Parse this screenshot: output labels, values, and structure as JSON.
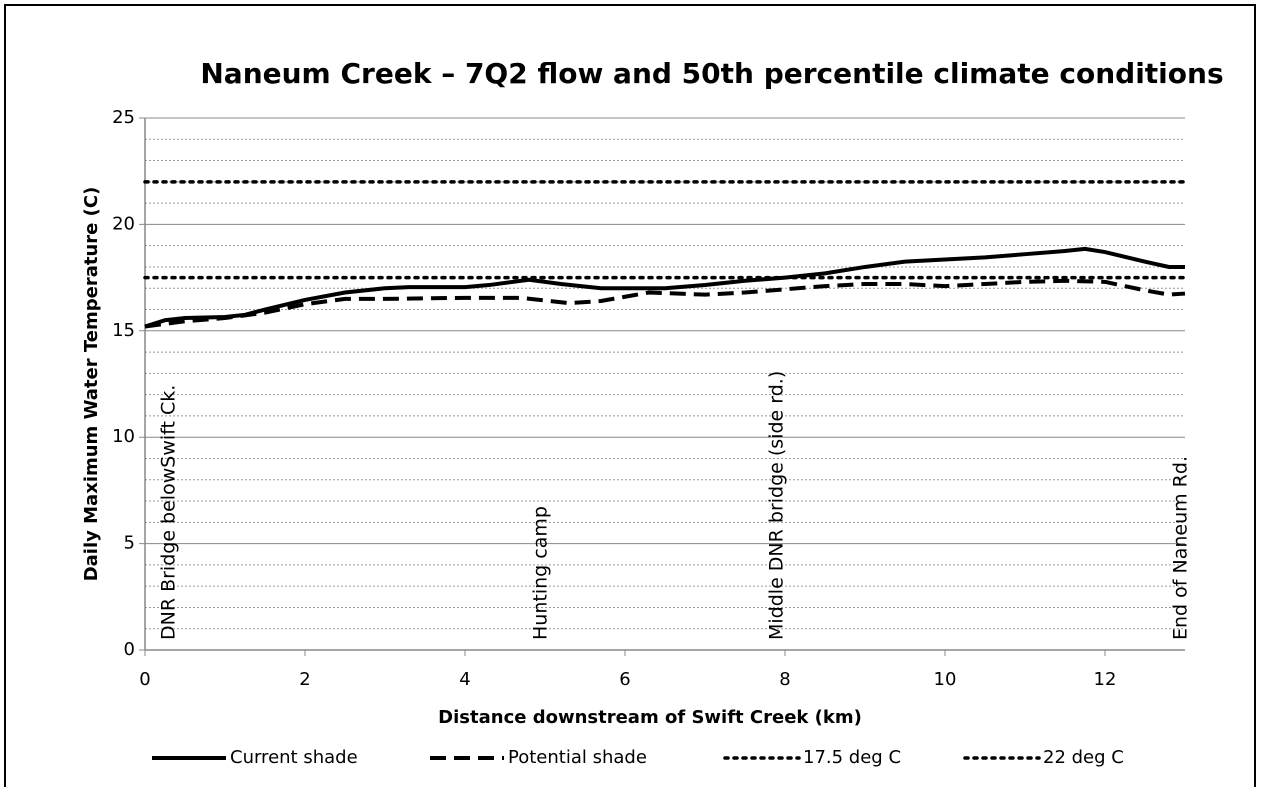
{
  "chart_data": {
    "type": "line",
    "title": "Naneum Creek – 7Q2 flow and 50th percentile climate conditions",
    "x_label": "Distance downstream of Swift Creek (km)",
    "y_label": "Daily Maximum Water Temperature (C)",
    "xlim": [
      0,
      13
    ],
    "xticks": [
      0,
      2,
      4,
      6,
      8,
      10,
      12
    ],
    "ylim": [
      0,
      25
    ],
    "yticks": [
      0,
      5,
      10,
      15,
      20,
      25
    ],
    "y_minor_ticks": [
      1,
      2,
      3,
      4,
      6,
      7,
      8,
      9,
      11,
      12,
      13,
      14,
      16,
      17,
      18,
      19,
      21,
      22,
      23,
      24
    ],
    "grid": true,
    "legend": "bottom",
    "series": [
      {
        "name": "Current shade",
        "color": "#000000",
        "dash": "solid",
        "x": [
          0,
          0.25,
          0.5,
          1,
          1.25,
          1.5,
          2,
          2.5,
          3,
          3.3,
          4,
          4.3,
          4.8,
          5.2,
          5.7,
          6.5,
          7,
          7.5,
          8,
          8.5,
          9,
          9.5,
          10,
          10.5,
          11,
          11.5,
          11.75,
          12,
          12.5,
          12.8,
          13
        ],
        "values": [
          15.2,
          15.5,
          15.6,
          15.65,
          15.75,
          16.0,
          16.45,
          16.8,
          17.0,
          17.05,
          17.05,
          17.15,
          17.4,
          17.2,
          17.0,
          17.0,
          17.15,
          17.35,
          17.5,
          17.7,
          18.0,
          18.25,
          18.35,
          18.45,
          18.6,
          18.75,
          18.85,
          18.7,
          18.25,
          18.0,
          18.0
        ]
      },
      {
        "name": "Potential shade",
        "color": "#000000",
        "dash": "dashed",
        "x": [
          0,
          0.5,
          1,
          1.5,
          2,
          2.5,
          3,
          4,
          4.7,
          5.3,
          5.7,
          6.3,
          7,
          7.5,
          8,
          8.5,
          9,
          9.5,
          10,
          10.5,
          11,
          11.5,
          12,
          12.5,
          12.8,
          13
        ],
        "values": [
          15.2,
          15.45,
          15.6,
          15.85,
          16.25,
          16.5,
          16.5,
          16.55,
          16.55,
          16.3,
          16.4,
          16.8,
          16.7,
          16.8,
          16.95,
          17.1,
          17.2,
          17.2,
          17.1,
          17.2,
          17.3,
          17.35,
          17.3,
          16.9,
          16.7,
          16.75
        ]
      },
      {
        "name": "17.5 deg C",
        "color": "#000000",
        "dash": "dotted",
        "x": [
          0,
          13
        ],
        "values": [
          17.5,
          17.5
        ]
      },
      {
        "name": "22 deg C",
        "color": "#000000",
        "dash": "dotted",
        "x": [
          0,
          13
        ],
        "values": [
          22,
          22
        ]
      }
    ],
    "annotations": [
      {
        "text": "DNR Bridge belowSwift Ck.",
        "x": 0.3
      },
      {
        "text": "Hunting camp",
        "x": 4.95
      },
      {
        "text": "Middle DNR bridge (side rd.)",
        "x": 7.9
      },
      {
        "text": "End of Naneum Rd.",
        "x": 12.95
      }
    ]
  }
}
